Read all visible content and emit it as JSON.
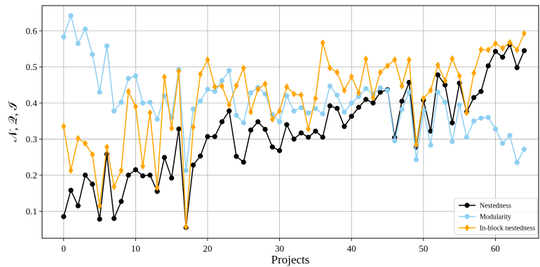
{
  "chart_data": {
    "type": "line",
    "xlabel": "Projects",
    "ylabel": "𝒩, 𝒬, ℐ",
    "xlim": [
      -3,
      66
    ],
    "ylim": [
      0.025,
      0.67
    ],
    "xticks": [
      0,
      10,
      20,
      30,
      40,
      50,
      60
    ],
    "yticks": [
      0.1,
      0.2,
      0.3,
      0.4,
      0.5,
      0.6
    ],
    "grid": true,
    "legend_position": "lower-right",
    "x": [
      0,
      1,
      2,
      3,
      4,
      5,
      6,
      7,
      8,
      9,
      10,
      11,
      12,
      13,
      14,
      15,
      16,
      17,
      18,
      19,
      20,
      21,
      22,
      23,
      24,
      25,
      26,
      27,
      28,
      29,
      30,
      31,
      32,
      33,
      34,
      35,
      36,
      37,
      38,
      39,
      40,
      41,
      42,
      43,
      44,
      45,
      46,
      47,
      48,
      49,
      50,
      51,
      52,
      53,
      54,
      55,
      56,
      57,
      58,
      59,
      60,
      61,
      62,
      63,
      64
    ],
    "series": [
      {
        "name": "Nestedness",
        "color": "#000000",
        "marker": "circle",
        "values": [
          0.085,
          0.158,
          0.115,
          0.2,
          0.175,
          0.078,
          0.258,
          0.08,
          0.127,
          0.2,
          0.215,
          0.198,
          0.2,
          0.155,
          0.249,
          0.192,
          0.328,
          0.055,
          0.228,
          0.253,
          0.307,
          0.307,
          0.348,
          0.378,
          0.252,
          0.236,
          0.325,
          0.348,
          0.327,
          0.278,
          0.268,
          0.34,
          0.3,
          0.317,
          0.305,
          0.322,
          0.305,
          0.392,
          0.385,
          0.335,
          0.363,
          0.388,
          0.41,
          0.4,
          0.43,
          0.437,
          0.305,
          0.405,
          0.457,
          0.278,
          0.408,
          0.322,
          0.478,
          0.45,
          0.345,
          0.455,
          0.375,
          0.415,
          0.432,
          0.503,
          0.543,
          0.527,
          0.562,
          0.498,
          0.545
        ]
      },
      {
        "name": "Modularity",
        "color": "#8ecff2",
        "marker": "circle",
        "values": [
          0.583,
          0.642,
          0.565,
          0.605,
          0.535,
          0.43,
          0.558,
          0.378,
          0.402,
          0.468,
          0.475,
          0.4,
          0.402,
          0.355,
          0.42,
          0.36,
          0.492,
          0.213,
          0.383,
          0.405,
          0.438,
          0.432,
          0.462,
          0.49,
          0.366,
          0.345,
          0.428,
          0.443,
          0.425,
          0.368,
          0.348,
          0.42,
          0.378,
          0.387,
          0.372,
          0.385,
          0.37,
          0.447,
          0.422,
          0.375,
          0.4,
          0.418,
          0.44,
          0.425,
          0.442,
          0.435,
          0.295,
          0.382,
          0.43,
          0.243,
          0.38,
          0.283,
          0.43,
          0.402,
          0.293,
          0.395,
          0.305,
          0.35,
          0.358,
          0.36,
          0.328,
          0.288,
          0.31,
          0.235,
          0.272
        ]
      },
      {
        "name": "In-block nestedness",
        "color": "#ffa500",
        "marker": "diamond",
        "values": [
          0.335,
          0.213,
          0.302,
          0.288,
          0.257,
          0.115,
          0.278,
          0.168,
          0.213,
          0.432,
          0.39,
          0.225,
          0.373,
          0.165,
          0.472,
          0.33,
          0.488,
          0.057,
          0.333,
          0.48,
          0.52,
          0.445,
          0.447,
          0.395,
          0.448,
          0.497,
          0.375,
          0.438,
          0.453,
          0.355,
          0.378,
          0.445,
          0.425,
          0.422,
          0.328,
          0.413,
          0.567,
          0.497,
          0.485,
          0.435,
          0.473,
          0.428,
          0.522,
          0.415,
          0.485,
          0.503,
          0.52,
          0.447,
          0.52,
          0.285,
          0.413,
          0.435,
          0.505,
          0.462,
          0.523,
          0.475,
          0.373,
          0.483,
          0.548,
          0.547,
          0.565,
          0.552,
          0.568,
          0.547,
          0.593
        ]
      }
    ]
  }
}
